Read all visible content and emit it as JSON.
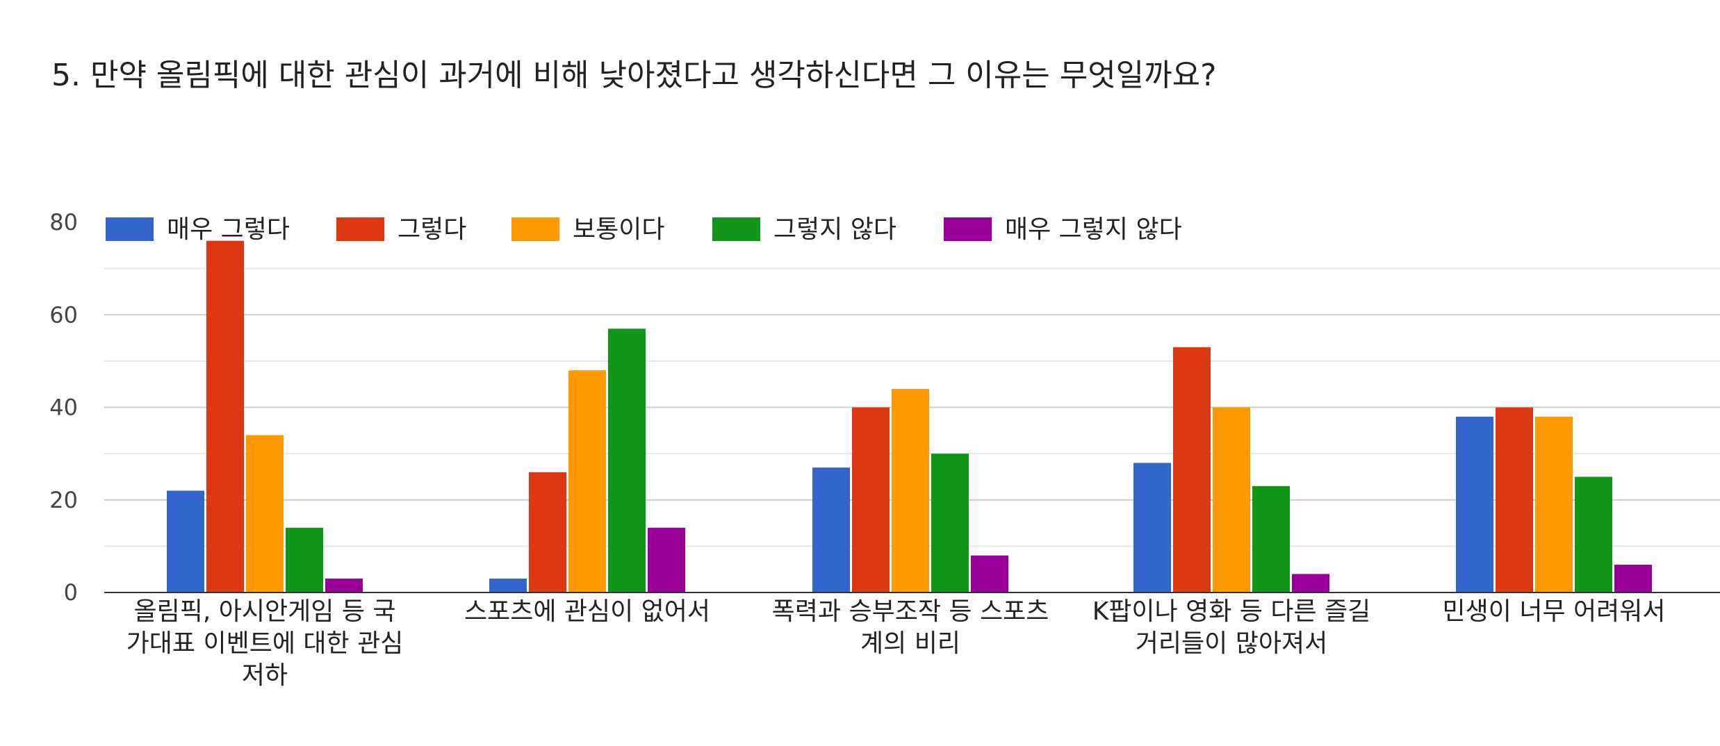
{
  "page": {
    "title": "5. 만약 올림픽에 대한 관심이 과거에 비해 낮아졌다고 생각하신다면 그 이유는 무엇일까요?"
  },
  "chart_data": {
    "type": "bar",
    "title": "5. 만약 올림픽에 대한 관심이 과거에 비해 낮아졌다고 생각하신다면 그 이유는 무엇일까요?",
    "xlabel": "",
    "ylabel": "",
    "ylim": [
      0,
      80
    ],
    "yticks": [
      0,
      20,
      40,
      60,
      80
    ],
    "grid": true,
    "legend_position": "top-left",
    "categories": [
      [
        "올림픽, 아시안게임 등 국",
        "가대표 이벤트에 대한 관심",
        "저하"
      ],
      [
        "스포츠에 관심이 없어서"
      ],
      [
        "폭력과 승부조작 등 스포츠",
        "계의 비리"
      ],
      [
        "K팝이나 영화 등 다른 즐길",
        "거리들이 많아져서"
      ],
      [
        "민생이 너무 어려워서"
      ]
    ],
    "series": [
      {
        "name": "매우 그렇다",
        "color": "#3366cc",
        "values": [
          22,
          3,
          27,
          28,
          38
        ]
      },
      {
        "name": "그렇다",
        "color": "#dc3912",
        "values": [
          76,
          26,
          40,
          53,
          40
        ]
      },
      {
        "name": "보통이다",
        "color": "#ff9900",
        "values": [
          34,
          48,
          44,
          40,
          38
        ]
      },
      {
        "name": "그렇지 않다",
        "color": "#109618",
        "values": [
          14,
          57,
          30,
          23,
          25
        ]
      },
      {
        "name": "매우 그렇지 않다",
        "color": "#990099",
        "values": [
          3,
          14,
          8,
          4,
          6
        ]
      }
    ]
  }
}
